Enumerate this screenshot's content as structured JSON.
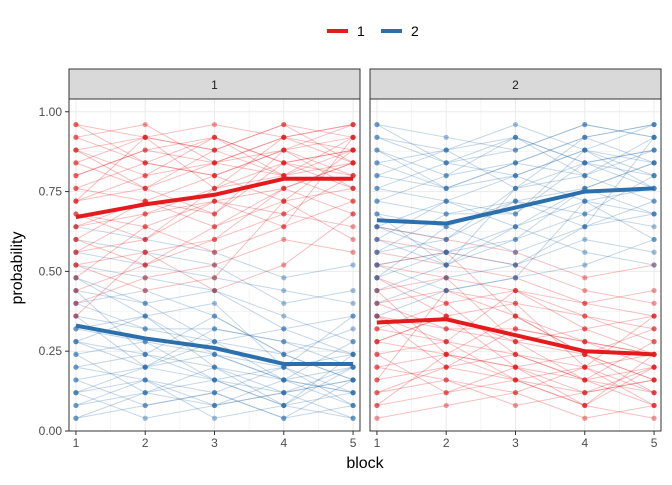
{
  "chart_data": {
    "type": "line",
    "xlabel": "block",
    "ylabel": "probability",
    "x": [
      1,
      2,
      3,
      4,
      5
    ],
    "xlim": [
      0.9,
      5.1
    ],
    "ylim": [
      0,
      1.04
    ],
    "yticks": [
      0.0,
      0.25,
      0.5,
      0.75,
      1.0
    ],
    "ytick_labels": [
      "0.00",
      "0.25",
      "0.50",
      "0.75",
      "1.00"
    ],
    "xtick_labels": [
      "1",
      "2",
      "3",
      "4",
      "5"
    ],
    "grid": true,
    "legend": {
      "placement": "top",
      "entries": [
        "1",
        "2"
      ]
    },
    "colors": {
      "1": "#e41a1c",
      "2": "#2c6fad"
    },
    "facets": [
      {
        "label": "1",
        "mean_series": [
          {
            "name": "1",
            "values": [
              0.67,
              0.71,
              0.74,
              0.79,
              0.79
            ]
          },
          {
            "name": "2",
            "values": [
              0.33,
              0.29,
              0.26,
              0.21,
              0.21
            ]
          }
        ],
        "individual_series": {
          "1": [
            [
              0.96,
              0.92,
              0.88,
              0.96,
              0.92
            ],
            [
              0.92,
              0.84,
              0.8,
              0.88,
              0.96
            ],
            [
              0.88,
              0.8,
              0.92,
              0.84,
              0.88
            ],
            [
              0.84,
              0.92,
              0.76,
              0.92,
              0.84
            ],
            [
              0.8,
              0.88,
              0.84,
              0.8,
              0.92
            ],
            [
              0.76,
              0.72,
              0.8,
              0.88,
              0.8
            ],
            [
              0.72,
              0.76,
              0.68,
              0.84,
              0.88
            ],
            [
              0.68,
              0.64,
              0.72,
              0.76,
              0.84
            ],
            [
              0.64,
              0.68,
              0.76,
              0.8,
              0.72
            ],
            [
              0.6,
              0.72,
              0.64,
              0.72,
              0.76
            ],
            [
              0.56,
              0.6,
              0.72,
              0.68,
              0.8
            ],
            [
              0.52,
              0.56,
              0.6,
              0.76,
              0.68
            ],
            [
              0.48,
              0.64,
              0.56,
              0.64,
              0.72
            ],
            [
              0.88,
              0.92,
              0.96,
              0.92,
              0.88
            ],
            [
              0.92,
              0.96,
              0.84,
              0.88,
              0.92
            ],
            [
              0.84,
              0.76,
              0.88,
              0.96,
              0.84
            ],
            [
              0.76,
              0.84,
              0.8,
              0.72,
              0.88
            ],
            [
              0.72,
              0.8,
              0.84,
              0.92,
              0.96
            ],
            [
              0.68,
              0.6,
              0.76,
              0.84,
              0.8
            ],
            [
              0.64,
              0.72,
              0.68,
              0.88,
              0.76
            ],
            [
              0.6,
              0.52,
              0.64,
              0.76,
              0.84
            ],
            [
              0.56,
              0.68,
              0.72,
              0.64,
              0.92
            ],
            [
              0.8,
              0.88,
              0.92,
              0.84,
              0.76
            ],
            [
              0.44,
              0.52,
              0.6,
              0.68,
              0.64
            ],
            [
              0.4,
              0.48,
              0.52,
              0.6,
              0.56
            ],
            [
              0.96,
              0.84,
              0.92,
              0.8,
              0.88
            ],
            [
              0.52,
              0.44,
              0.48,
              0.72,
              0.6
            ],
            [
              0.88,
              0.76,
              0.84,
              0.92,
              0.96
            ],
            [
              0.36,
              0.56,
              0.44,
              0.52,
              0.68
            ],
            [
              0.72,
              0.92,
              0.88,
              0.8,
              0.84
            ]
          ],
          "2": [
            [
              0.04,
              0.08,
              0.12,
              0.04,
              0.08
            ],
            [
              0.08,
              0.12,
              0.16,
              0.08,
              0.04
            ],
            [
              0.12,
              0.16,
              0.08,
              0.12,
              0.16
            ],
            [
              0.16,
              0.2,
              0.24,
              0.16,
              0.12
            ],
            [
              0.2,
              0.24,
              0.2,
              0.08,
              0.2
            ],
            [
              0.24,
              0.28,
              0.16,
              0.2,
              0.24
            ],
            [
              0.28,
              0.2,
              0.28,
              0.24,
              0.16
            ],
            [
              0.32,
              0.36,
              0.24,
              0.16,
              0.28
            ],
            [
              0.36,
              0.32,
              0.32,
              0.28,
              0.2
            ],
            [
              0.4,
              0.44,
              0.36,
              0.24,
              0.32
            ],
            [
              0.44,
              0.4,
              0.28,
              0.32,
              0.24
            ],
            [
              0.48,
              0.36,
              0.4,
              0.2,
              0.36
            ],
            [
              0.52,
              0.48,
              0.44,
              0.36,
              0.28
            ],
            [
              0.12,
              0.04,
              0.08,
              0.12,
              0.04
            ],
            [
              0.08,
              0.16,
              0.04,
              0.08,
              0.12
            ],
            [
              0.16,
              0.08,
              0.12,
              0.04,
              0.16
            ],
            [
              0.24,
              0.12,
              0.2,
              0.16,
              0.08
            ],
            [
              0.28,
              0.24,
              0.16,
              0.12,
              0.2
            ],
            [
              0.32,
              0.28,
              0.24,
              0.2,
              0.12
            ],
            [
              0.36,
              0.2,
              0.32,
              0.28,
              0.24
            ],
            [
              0.4,
              0.32,
              0.28,
              0.16,
              0.2
            ],
            [
              0.44,
              0.24,
              0.36,
              0.24,
              0.16
            ],
            [
              0.2,
              0.16,
              0.12,
              0.2,
              0.08
            ],
            [
              0.56,
              0.52,
              0.48,
              0.44,
              0.4
            ],
            [
              0.6,
              0.56,
              0.52,
              0.4,
              0.44
            ],
            [
              0.04,
              0.12,
              0.08,
              0.16,
              0.12
            ],
            [
              0.48,
              0.4,
              0.44,
              0.32,
              0.36
            ],
            [
              0.12,
              0.2,
              0.16,
              0.08,
              0.24
            ],
            [
              0.64,
              0.6,
              0.56,
              0.48,
              0.52
            ],
            [
              0.28,
              0.36,
              0.2,
              0.12,
              0.16
            ]
          ]
        }
      },
      {
        "label": "2",
        "mean_series": [
          {
            "name": "1",
            "values": [
              0.34,
              0.35,
              0.3,
              0.25,
              0.24
            ]
          },
          {
            "name": "2",
            "values": [
              0.66,
              0.65,
              0.7,
              0.75,
              0.76
            ]
          }
        ],
        "individual_series": {
          "1": [
            [
              0.04,
              0.08,
              0.12,
              0.04,
              0.08
            ],
            [
              0.08,
              0.12,
              0.16,
              0.08,
              0.04
            ],
            [
              0.12,
              0.16,
              0.08,
              0.12,
              0.16
            ],
            [
              0.16,
              0.2,
              0.24,
              0.16,
              0.12
            ],
            [
              0.2,
              0.24,
              0.2,
              0.08,
              0.2
            ],
            [
              0.24,
              0.28,
              0.16,
              0.2,
              0.24
            ],
            [
              0.28,
              0.36,
              0.28,
              0.24,
              0.16
            ],
            [
              0.32,
              0.4,
              0.24,
              0.16,
              0.28
            ],
            [
              0.36,
              0.32,
              0.32,
              0.28,
              0.2
            ],
            [
              0.4,
              0.44,
              0.36,
              0.24,
              0.32
            ],
            [
              0.44,
              0.48,
              0.28,
              0.32,
              0.24
            ],
            [
              0.48,
              0.36,
              0.4,
              0.2,
              0.36
            ],
            [
              0.52,
              0.48,
              0.44,
              0.36,
              0.28
            ],
            [
              0.56,
              0.52,
              0.48,
              0.4,
              0.44
            ],
            [
              0.6,
              0.56,
              0.52,
              0.44,
              0.4
            ],
            [
              0.64,
              0.6,
              0.56,
              0.48,
              0.52
            ],
            [
              0.24,
              0.12,
              0.2,
              0.16,
              0.08
            ],
            [
              0.28,
              0.24,
              0.16,
              0.12,
              0.2
            ],
            [
              0.32,
              0.28,
              0.24,
              0.2,
              0.12
            ],
            [
              0.36,
              0.2,
              0.32,
              0.28,
              0.24
            ],
            [
              0.4,
              0.32,
              0.28,
              0.16,
              0.2
            ],
            [
              0.44,
              0.24,
              0.36,
              0.24,
              0.16
            ],
            [
              0.2,
              0.16,
              0.12,
              0.2,
              0.08
            ],
            [
              0.48,
              0.4,
              0.44,
              0.32,
              0.36
            ],
            [
              0.12,
              0.2,
              0.16,
              0.08,
              0.24
            ],
            [
              0.28,
              0.36,
              0.2,
              0.12,
              0.16
            ],
            [
              0.16,
              0.44,
              0.4,
              0.36,
              0.32
            ],
            [
              0.52,
              0.56,
              0.36,
              0.28,
              0.24
            ],
            [
              0.36,
              0.28,
              0.44,
              0.4,
              0.36
            ],
            [
              0.08,
              0.24,
              0.2,
              0.24,
              0.12
            ]
          ],
          "2": [
            [
              0.96,
              0.92,
              0.88,
              0.96,
              0.92
            ],
            [
              0.92,
              0.84,
              0.8,
              0.88,
              0.96
            ],
            [
              0.88,
              0.8,
              0.92,
              0.84,
              0.88
            ],
            [
              0.84,
              0.88,
              0.76,
              0.92,
              0.84
            ],
            [
              0.8,
              0.76,
              0.84,
              0.8,
              0.92
            ],
            [
              0.76,
              0.72,
              0.8,
              0.88,
              0.8
            ],
            [
              0.72,
              0.68,
              0.68,
              0.84,
              0.88
            ],
            [
              0.68,
              0.64,
              0.72,
              0.76,
              0.84
            ],
            [
              0.64,
              0.6,
              0.76,
              0.8,
              0.72
            ],
            [
              0.6,
              0.72,
              0.64,
              0.72,
              0.76
            ],
            [
              0.56,
              0.6,
              0.72,
              0.68,
              0.8
            ],
            [
              0.52,
              0.56,
              0.6,
              0.76,
              0.68
            ],
            [
              0.48,
              0.64,
              0.56,
              0.64,
              0.72
            ],
            [
              0.44,
              0.52,
              0.6,
              0.68,
              0.64
            ],
            [
              0.4,
              0.48,
              0.52,
              0.6,
              0.56
            ],
            [
              0.36,
              0.44,
              0.48,
              0.52,
              0.6
            ],
            [
              0.88,
              0.76,
              0.84,
              0.92,
              0.96
            ],
            [
              0.72,
              0.8,
              0.84,
              0.92,
              0.96
            ],
            [
              0.68,
              0.52,
              0.76,
              0.84,
              0.8
            ],
            [
              0.64,
              0.72,
              0.68,
              0.88,
              0.76
            ],
            [
              0.6,
              0.52,
              0.64,
              0.76,
              0.84
            ],
            [
              0.56,
              0.68,
              0.72,
              0.64,
              0.92
            ],
            [
              0.8,
              0.88,
              0.92,
              0.84,
              0.76
            ],
            [
              0.52,
              0.44,
              0.48,
              0.72,
              0.6
            ],
            [
              0.96,
              0.84,
              0.92,
              0.8,
              0.88
            ],
            [
              0.84,
              0.76,
              0.8,
              0.72,
              0.68
            ],
            [
              0.76,
              0.84,
              0.88,
              0.96,
              0.92
            ],
            [
              0.48,
              0.56,
              0.64,
              0.56,
              0.52
            ],
            [
              0.64,
              0.56,
              0.52,
              0.64,
              0.68
            ],
            [
              0.92,
              0.88,
              0.96,
              0.88,
              0.84
            ]
          ]
        }
      }
    ]
  }
}
